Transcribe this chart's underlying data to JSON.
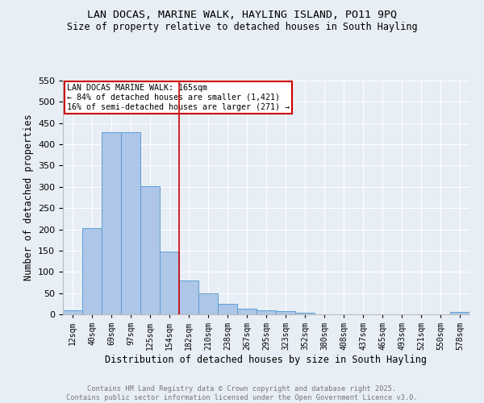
{
  "title": "LAN DOCAS, MARINE WALK, HAYLING ISLAND, PO11 9PQ",
  "subtitle": "Size of property relative to detached houses in South Hayling",
  "xlabel": "Distribution of detached houses by size in South Hayling",
  "ylabel": "Number of detached properties",
  "bar_color": "#aec6e8",
  "bar_edge_color": "#5a9fd4",
  "background_color": "#e8eef5",
  "categories": [
    "12sqm",
    "40sqm",
    "69sqm",
    "97sqm",
    "125sqm",
    "154sqm",
    "182sqm",
    "210sqm",
    "238sqm",
    "267sqm",
    "295sqm",
    "323sqm",
    "352sqm",
    "380sqm",
    "408sqm",
    "437sqm",
    "465sqm",
    "493sqm",
    "521sqm",
    "550sqm",
    "578sqm"
  ],
  "values": [
    10,
    203,
    428,
    428,
    301,
    147,
    80,
    50,
    25,
    13,
    10,
    8,
    3,
    0,
    0,
    0,
    0,
    0,
    0,
    0,
    5
  ],
  "ylim": [
    0,
    550
  ],
  "yticks": [
    0,
    50,
    100,
    150,
    200,
    250,
    300,
    350,
    400,
    450,
    500,
    550
  ],
  "property_line_x": 5.5,
  "property_label": "LAN DOCAS MARINE WALK: 165sqm",
  "annotation_line1": "← 84% of detached houses are smaller (1,421)",
  "annotation_line2": "16% of semi-detached houses are larger (271) →",
  "vline_color": "#cc0000",
  "annotation_box_color": "#cc0000",
  "footer_line1": "Contains HM Land Registry data © Crown copyright and database right 2025.",
  "footer_line2": "Contains public sector information licensed under the Open Government Licence v3.0.",
  "footer_color": "#777777"
}
